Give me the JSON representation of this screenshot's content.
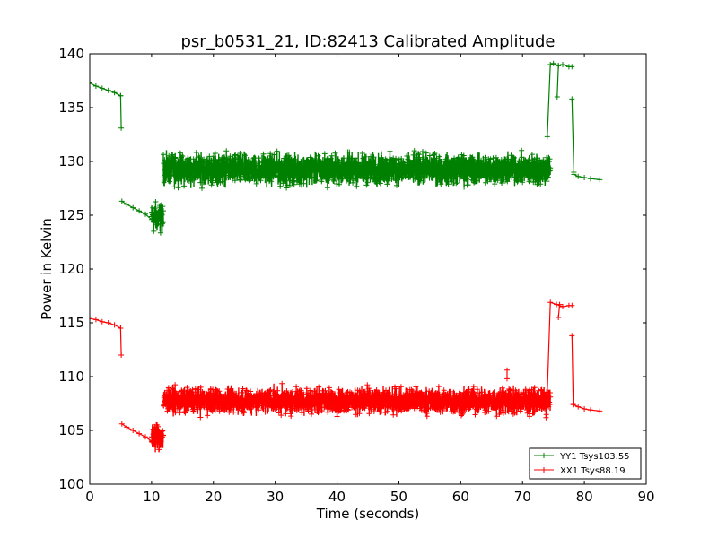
{
  "chart_data": {
    "type": "line",
    "title": "psr_b0531_21, ID:82413 Calibrated Amplitude",
    "xlabel": "Time (seconds)",
    "ylabel": "Power in Kelvin",
    "xlim": [
      0,
      90
    ],
    "ylim": [
      100,
      140
    ],
    "xticks": [
      "0",
      "10",
      "20",
      "30",
      "40",
      "50",
      "60",
      "70",
      "80",
      "90"
    ],
    "yticks": [
      "100",
      "105",
      "110",
      "115",
      "120",
      "125",
      "130",
      "135",
      "140"
    ],
    "grid": false,
    "legend_position": "lower-right",
    "marker": "+",
    "series": [
      {
        "name": "YY1 Tsys103.55",
        "color": "#008000",
        "segments": [
          {
            "x": [
              0,
              1,
              2,
              3,
              4,
              5
            ],
            "y": [
              137.3,
              137.0,
              136.8,
              136.6,
              136.4,
              136.1
            ]
          },
          {
            "x": [
              5.0,
              5.1
            ],
            "y": [
              136.1,
              133.1
            ]
          },
          {
            "x": [
              5.2,
              6,
              7,
              8,
              9,
              10
            ],
            "y": [
              126.3,
              126.0,
              125.7,
              125.4,
              125.1,
              124.6
            ]
          },
          {
            "noise": true,
            "x0": 10.0,
            "x1": 11.9,
            "low": 123.0,
            "high": 126.5
          },
          {
            "noise": true,
            "x0": 11.9,
            "x1": 74.5,
            "low": 127.5,
            "high": 131.0
          },
          {
            "x": [
              74.0,
              74.5,
              75.0,
              75.8,
              76.5,
              77.5,
              78.0
            ],
            "y": [
              132.3,
              139.0,
              139.1,
              138.9,
              139.0,
              138.8,
              138.8
            ]
          },
          {
            "x": [
              75.6,
              75.8
            ],
            "y": [
              136.0,
              138.9
            ]
          },
          {
            "x": [
              78.0,
              78.3
            ],
            "y": [
              135.8,
              129.0
            ]
          },
          {
            "x": [
              78.3,
              79,
              80,
              81,
              82.5
            ],
            "y": [
              128.8,
              128.6,
              128.5,
              128.4,
              128.3
            ]
          }
        ]
      },
      {
        "name": "XX1 Tsys88.19",
        "color": "#ff0000",
        "segments": [
          {
            "x": [
              0,
              1,
              2,
              3,
              4,
              5
            ],
            "y": [
              115.4,
              115.3,
              115.1,
              115.0,
              114.8,
              114.5
            ]
          },
          {
            "x": [
              5.0,
              5.1
            ],
            "y": [
              114.5,
              112.0
            ]
          },
          {
            "x": [
              5.2,
              6,
              7,
              8,
              9,
              10
            ],
            "y": [
              105.6,
              105.3,
              105.0,
              104.7,
              104.4,
              104.0
            ]
          },
          {
            "noise": true,
            "x0": 10.0,
            "x1": 11.9,
            "low": 102.8,
            "high": 106.0
          },
          {
            "noise": true,
            "x0": 11.9,
            "x1": 74.5,
            "low": 106.3,
            "high": 109.2
          },
          {
            "x": [
              67.5,
              67.5
            ],
            "y": [
              109.8,
              110.6
            ]
          },
          {
            "x": [
              74.0,
              74.5,
              75.5,
              76.5,
              77.5,
              78.0
            ],
            "y": [
              108.5,
              116.9,
              116.7,
              116.5,
              116.6,
              116.6
            ]
          },
          {
            "x": [
              75.8,
              76.0
            ],
            "y": [
              115.5,
              116.7
            ]
          },
          {
            "x": [
              78.0,
              78.2
            ],
            "y": [
              113.8,
              107.5
            ]
          },
          {
            "x": [
              78.2,
              79,
              80,
              81,
              82.5
            ],
            "y": [
              107.4,
              107.2,
              107.0,
              106.9,
              106.8
            ]
          }
        ]
      }
    ]
  }
}
